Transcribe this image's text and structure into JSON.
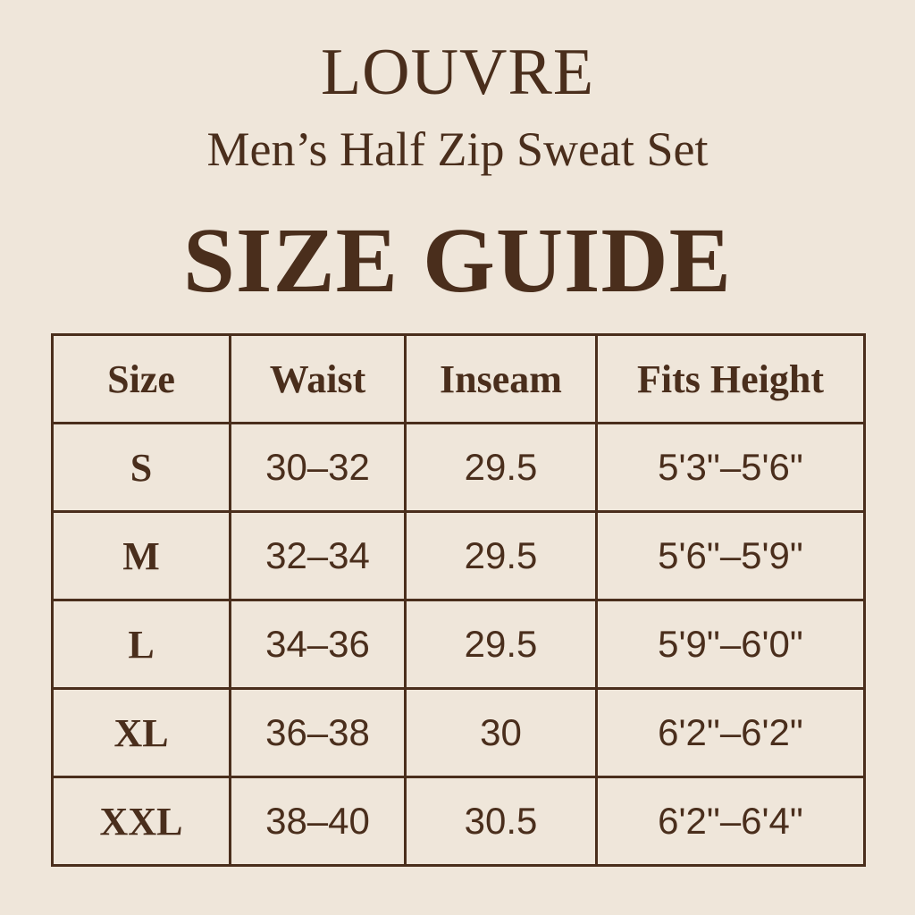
{
  "brand": "LOUVRE",
  "subtitle": "Men’s Half Zip Sweat Set",
  "title": "SIZE GUIDE",
  "colors": {
    "background": "#efe6da",
    "text": "#4a2e1c"
  },
  "table": {
    "headers": [
      "Size",
      "Waist",
      "Inseam",
      "Fits Height"
    ],
    "rows": [
      [
        "S",
        "30–32",
        "29.5",
        "5'3\"–5'6\""
      ],
      [
        "M",
        "32–34",
        "29.5",
        "5'6\"–5'9\""
      ],
      [
        "L",
        "34–36",
        "29.5",
        "5'9\"–6'0\""
      ],
      [
        "XL",
        "36–38",
        "30",
        "6'2\"–6'2\""
      ],
      [
        "XXL",
        "38–40",
        "30.5",
        "6'2\"–6'4\""
      ]
    ]
  }
}
